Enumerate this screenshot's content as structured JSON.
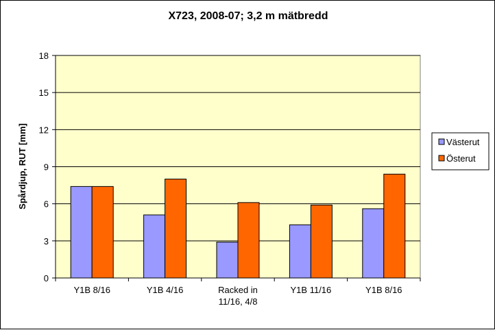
{
  "chart_data": {
    "type": "bar",
    "title": "X723, 2008-07; 3,2 m mätbredd",
    "xlabel": "",
    "ylabel": "Spårdjup, RUT [mm]",
    "ylim": [
      0,
      18
    ],
    "yticks": [
      0,
      3,
      6,
      9,
      12,
      15,
      18
    ],
    "grid": true,
    "legend_position": "right",
    "categories": [
      [
        "Y1B 8/16"
      ],
      [
        "Y1B 4/16"
      ],
      [
        "Racked in",
        "11/16, 4/8"
      ],
      [
        "Y1B 11/16"
      ],
      [
        "Y1B 8/16"
      ]
    ],
    "series": [
      {
        "name": "Västerut",
        "color": "#9999ff",
        "values": [
          7.4,
          5.1,
          2.9,
          4.3,
          5.6
        ]
      },
      {
        "name": "Österut",
        "color": "#ff6600",
        "values": [
          7.4,
          8.0,
          6.1,
          5.9,
          8.4
        ]
      }
    ],
    "plot_background": "#ffffcc"
  }
}
